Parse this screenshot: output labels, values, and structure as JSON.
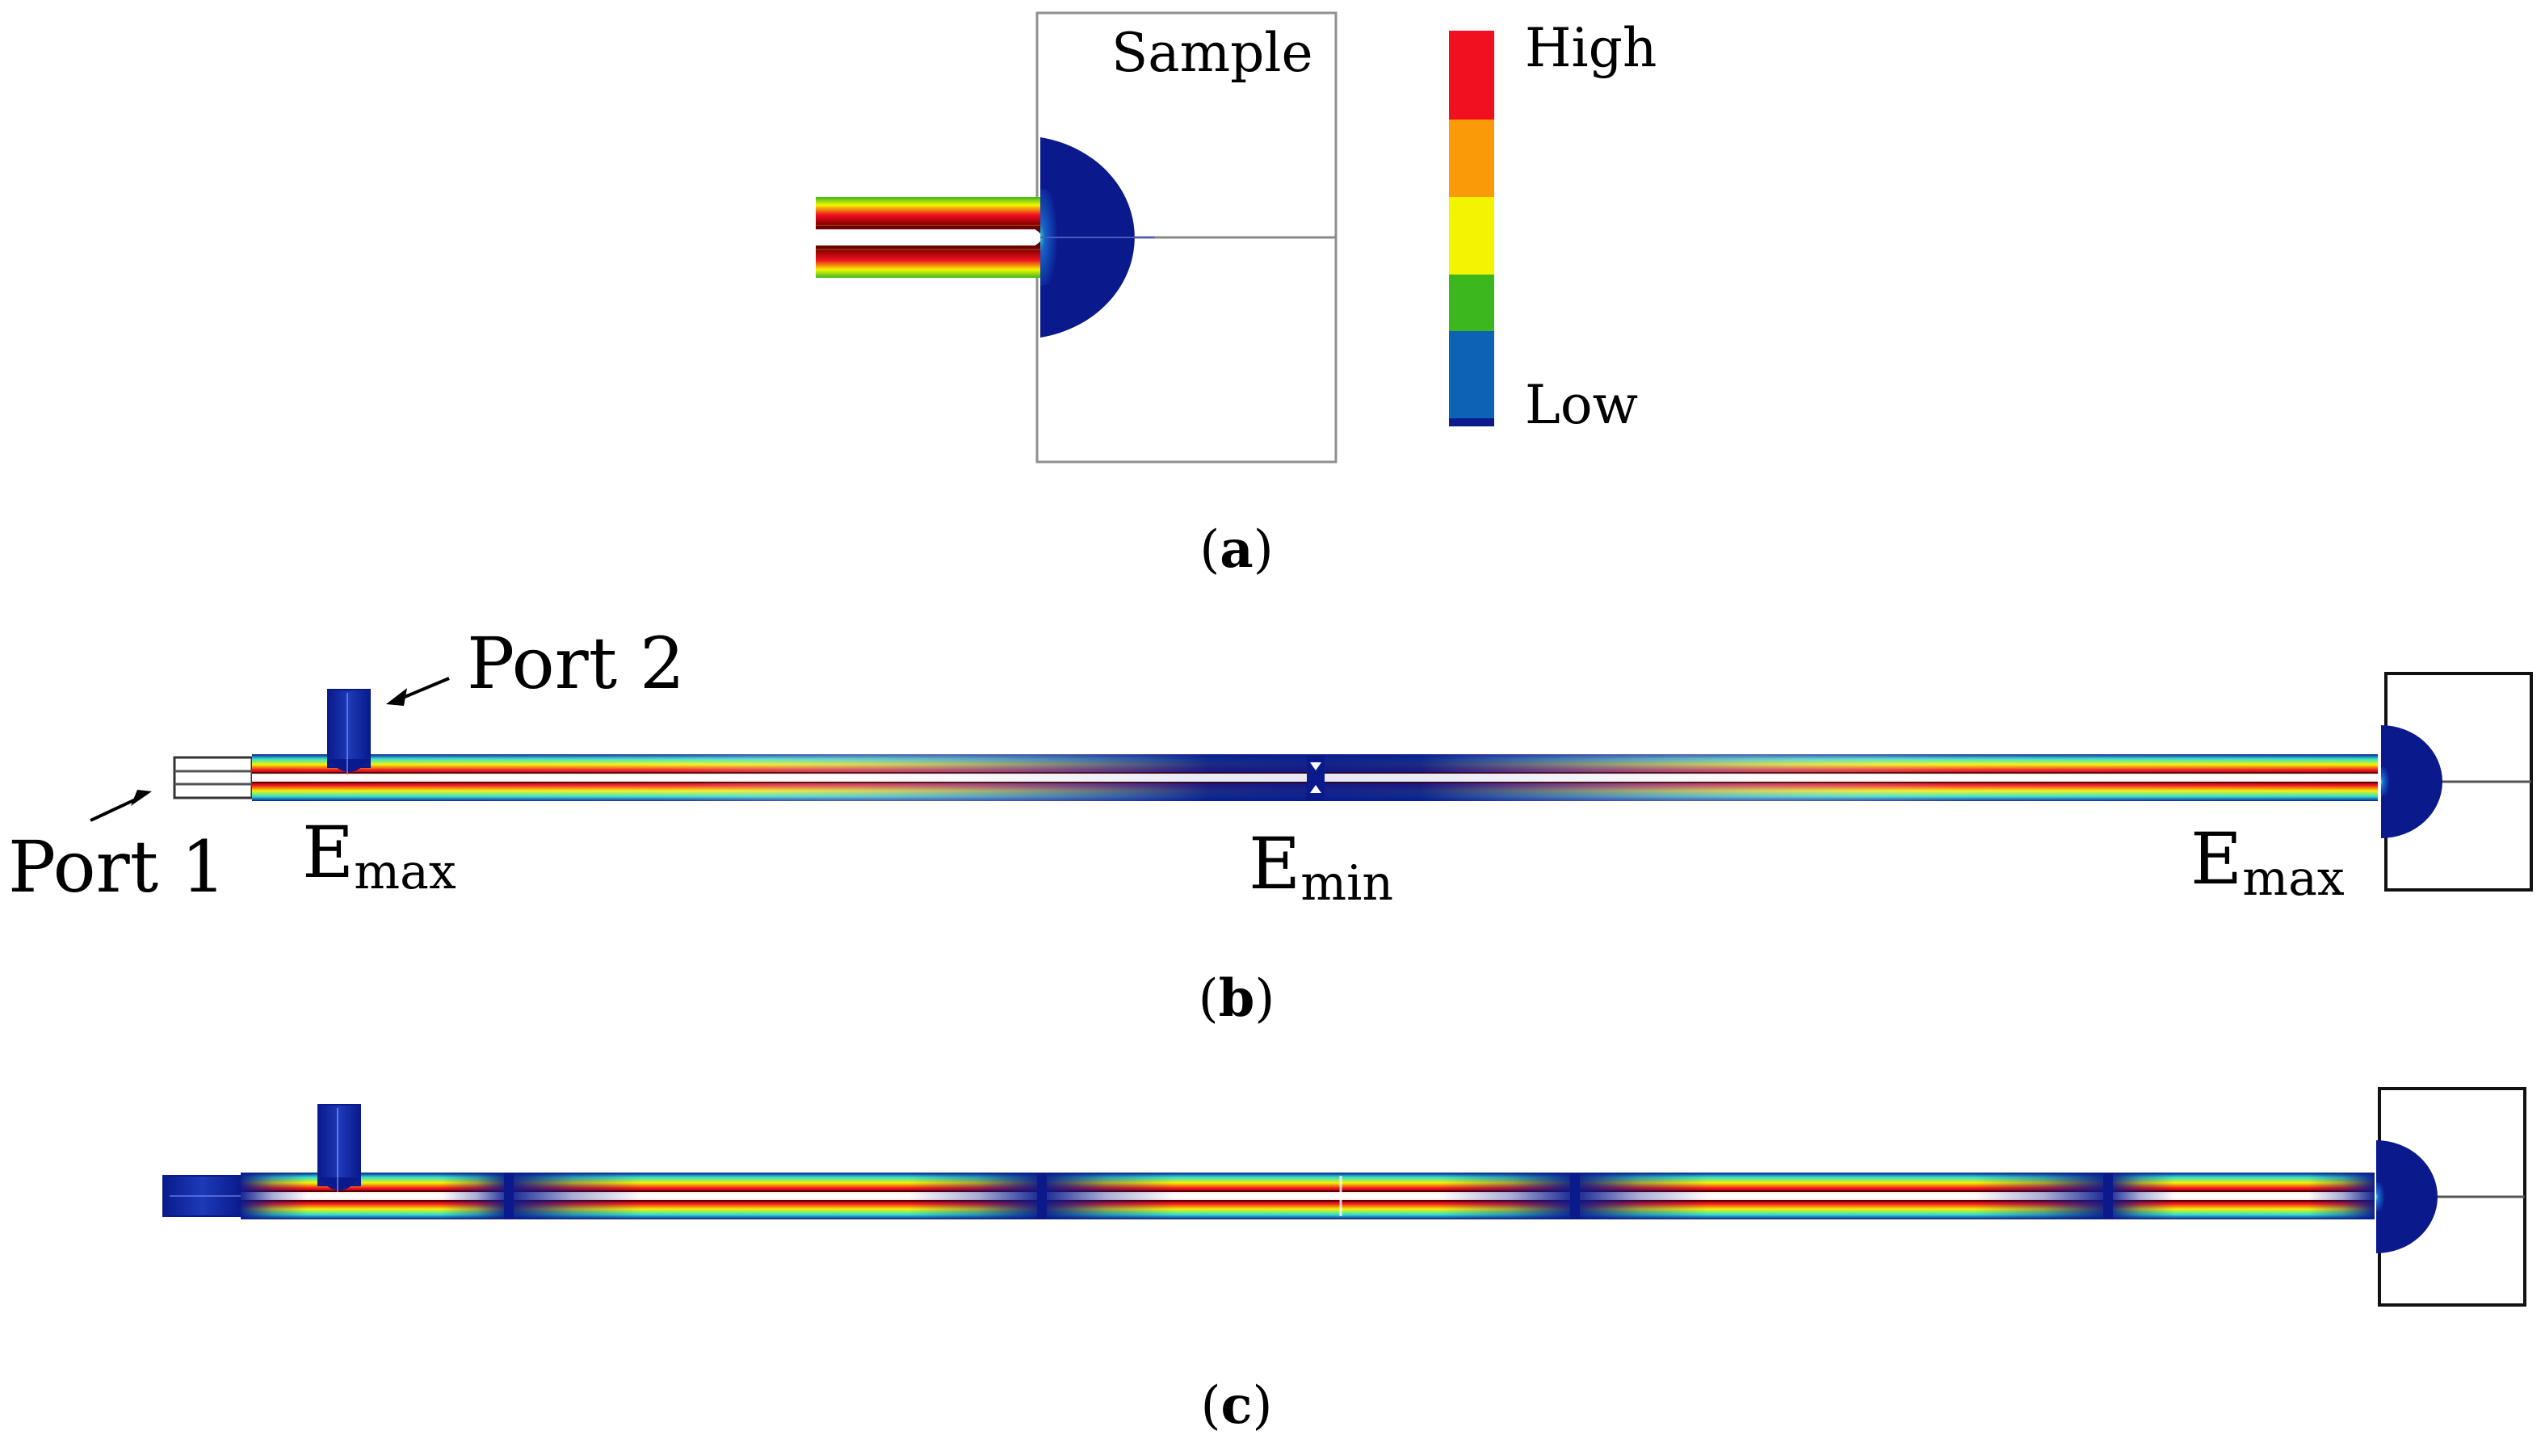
{
  "panel_a": {
    "sample_label": "Sample",
    "legend": {
      "high_label": "High",
      "low_label": "Low"
    },
    "caption": "a"
  },
  "panel_b": {
    "port1_label": "Port 1",
    "port2_label": "Port 2",
    "emax_left": {
      "main": "E",
      "sub": "max"
    },
    "emin": {
      "main": "E",
      "sub": "min"
    },
    "emax_right": {
      "main": "E",
      "sub": "max"
    },
    "caption": "b"
  },
  "panel_c": {
    "caption": "c"
  },
  "colors": {
    "high": "#f01020",
    "orange": "#fb9a08",
    "yellow": "#f4f400",
    "green": "#3cb81e",
    "blue": "#0c63b6",
    "dark_blue": "#0a1a8c",
    "cyan": "#30e0d0"
  }
}
